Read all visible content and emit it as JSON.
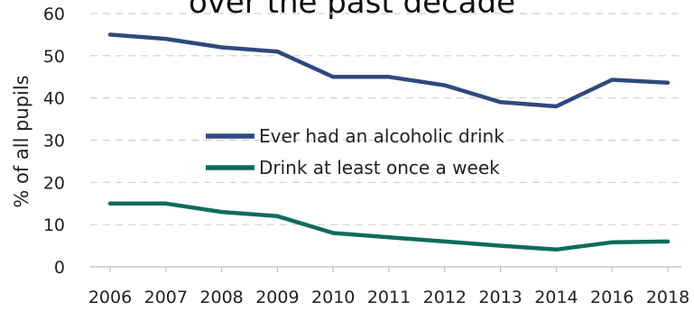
{
  "chart_data": {
    "type": "line",
    "title": "over the past decade",
    "xlabel": "",
    "ylabel": "% of all pupils",
    "ylim": [
      0,
      60
    ],
    "yticks": [
      0,
      10,
      20,
      30,
      40,
      50,
      60
    ],
    "categories": [
      "2006",
      "2007",
      "2008",
      "2009",
      "2010",
      "2011",
      "2012",
      "2013",
      "2014",
      "2016",
      "2018"
    ],
    "grid": true,
    "legend_position": "center",
    "series": [
      {
        "name": "Ever had an alcoholic drink",
        "color": "#2e4a7d",
        "values": [
          55,
          54,
          52,
          51,
          45,
          45,
          43,
          39,
          38,
          44.3,
          43.6
        ]
      },
      {
        "name": "Drink at least once a week",
        "color": "#0f6b5c",
        "values": [
          15,
          15,
          13,
          12,
          8,
          7,
          6,
          5,
          4.1,
          5.8,
          6
        ]
      }
    ]
  }
}
